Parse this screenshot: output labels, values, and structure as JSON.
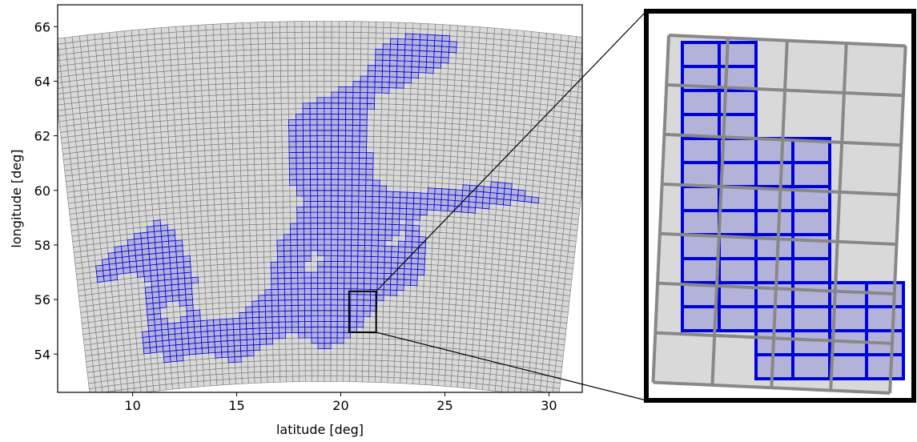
{
  "chart_data": [
    {
      "type": "map-grid",
      "title": "",
      "xlabel": "latitude [deg]",
      "ylabel": "longitude [deg]",
      "xlim": [
        6.4,
        31.6
      ],
      "ylim": [
        52.6,
        66.8
      ],
      "xticks": [
        10,
        15,
        20,
        25,
        30
      ],
      "yticks": [
        54,
        56,
        58,
        60,
        62,
        64,
        66
      ],
      "grid": false,
      "legend": "none",
      "mesh": {
        "lon_range": [
          7.0,
          31.5
        ],
        "lat_range": [
          53.0,
          66.2
        ],
        "cell_size_deg": [
          0.33,
          0.2
        ],
        "fill_color": "#d9d9d9",
        "edge_color": "#777777"
      },
      "sea_mask": {
        "fill_color": "#b3b3d9",
        "edge_color": "#0000dd",
        "polygons": [
          [
            [
              8.0,
              57.8
            ],
            [
              9.5,
              58.5
            ],
            [
              11.2,
              59.2
            ],
            [
              12.0,
              58.6
            ],
            [
              12.5,
              57.8
            ],
            [
              12.8,
              57.0
            ],
            [
              12.6,
              56.2
            ],
            [
              13.0,
              55.5
            ],
            [
              14.0,
              55.4
            ],
            [
              15.0,
              55.5
            ],
            [
              16.3,
              56.3
            ],
            [
              16.7,
              57.2
            ],
            [
              16.8,
              58.0
            ],
            [
              17.8,
              58.8
            ],
            [
              18.2,
              59.6
            ],
            [
              17.5,
              60.5
            ],
            [
              17.4,
              61.5
            ],
            [
              17.6,
              62.5
            ],
            [
              18.5,
              63.2
            ],
            [
              19.8,
              63.6
            ],
            [
              21.2,
              64.3
            ],
            [
              21.8,
              65.4
            ],
            [
              23.0,
              65.8
            ],
            [
              24.5,
              65.8
            ],
            [
              25.2,
              65.4
            ],
            [
              24.6,
              64.8
            ],
            [
              23.0,
              64.0
            ],
            [
              21.5,
              63.5
            ],
            [
              21.2,
              62.6
            ],
            [
              21.3,
              61.5
            ],
            [
              21.6,
              60.5
            ],
            [
              22.5,
              60.0
            ],
            [
              24.0,
              60.1
            ],
            [
              26.5,
              60.4
            ],
            [
              28.0,
              60.6
            ],
            [
              29.7,
              60.0
            ],
            [
              28.0,
              59.9
            ],
            [
              26.5,
              59.5
            ],
            [
              24.5,
              59.4
            ],
            [
              23.5,
              59.0
            ],
            [
              23.8,
              58.6
            ],
            [
              24.3,
              57.9
            ],
            [
              24.2,
              57.3
            ],
            [
              23.6,
              56.6
            ],
            [
              22.0,
              56.0
            ],
            [
              21.3,
              55.3
            ],
            [
              21.0,
              54.9
            ],
            [
              20.0,
              54.4
            ],
            [
              19.0,
              54.2
            ],
            [
              18.5,
              54.5
            ],
            [
              17.5,
              54.8
            ],
            [
              16.0,
              54.3
            ],
            [
              14.6,
              53.8
            ],
            [
              13.3,
              54.2
            ],
            [
              12.0,
              54.1
            ],
            [
              11.2,
              53.9
            ],
            [
              10.9,
              54.3
            ],
            [
              10.0,
              54.5
            ],
            [
              9.9,
              55.0
            ],
            [
              10.4,
              55.5
            ],
            [
              10.2,
              56.4
            ],
            [
              10.6,
              57.0
            ],
            [
              9.8,
              57.4
            ],
            [
              8.0,
              57.2
            ]
          ]
        ],
        "holes": [
          [
            [
              18.1,
              57.0
            ],
            [
              18.8,
              57.8
            ],
            [
              19.1,
              57.5
            ],
            [
              18.6,
              56.9
            ]
          ],
          [
            [
              15.8,
              56.4
            ],
            [
              16.4,
              56.9
            ],
            [
              16.6,
              56.6
            ],
            [
              16.0,
              56.1
            ]
          ],
          [
            [
              11.1,
              56.0
            ],
            [
              11.9,
              56.3
            ],
            [
              12.3,
              55.8
            ],
            [
              11.6,
              55.3
            ],
            [
              11.0,
              55.6
            ]
          ],
          [
            [
              21.9,
              58.0
            ],
            [
              23.0,
              58.7
            ],
            [
              23.3,
              58.2
            ],
            [
              22.4,
              57.9
            ]
          ],
          [
            [
              22.7,
              58.9
            ],
            [
              23.3,
              59.0
            ],
            [
              23.2,
              58.8
            ],
            [
              22.8,
              58.75
            ]
          ]
        ]
      },
      "zoom_box": {
        "lon": [
          20.4,
          21.7
        ],
        "lat": [
          54.8,
          56.3
        ]
      },
      "inset": {
        "type": "zoom",
        "mesh_columns": 4,
        "mesh_rows": 7,
        "mask": [
          [
            1,
            0,
            0,
            0
          ],
          [
            1,
            0,
            0,
            0
          ],
          [
            1,
            1,
            0,
            0
          ],
          [
            1,
            1,
            0,
            0
          ],
          [
            1,
            1,
            0,
            0
          ],
          [
            1,
            1,
            1,
            0
          ],
          [
            0,
            1,
            1,
            0
          ]
        ],
        "sea_fill_color": "#b3b3d9",
        "sea_edge_color": "#0000dd",
        "mesh_edge_color": "#888888",
        "mesh_fill_color": "#d9d9d9"
      }
    }
  ]
}
